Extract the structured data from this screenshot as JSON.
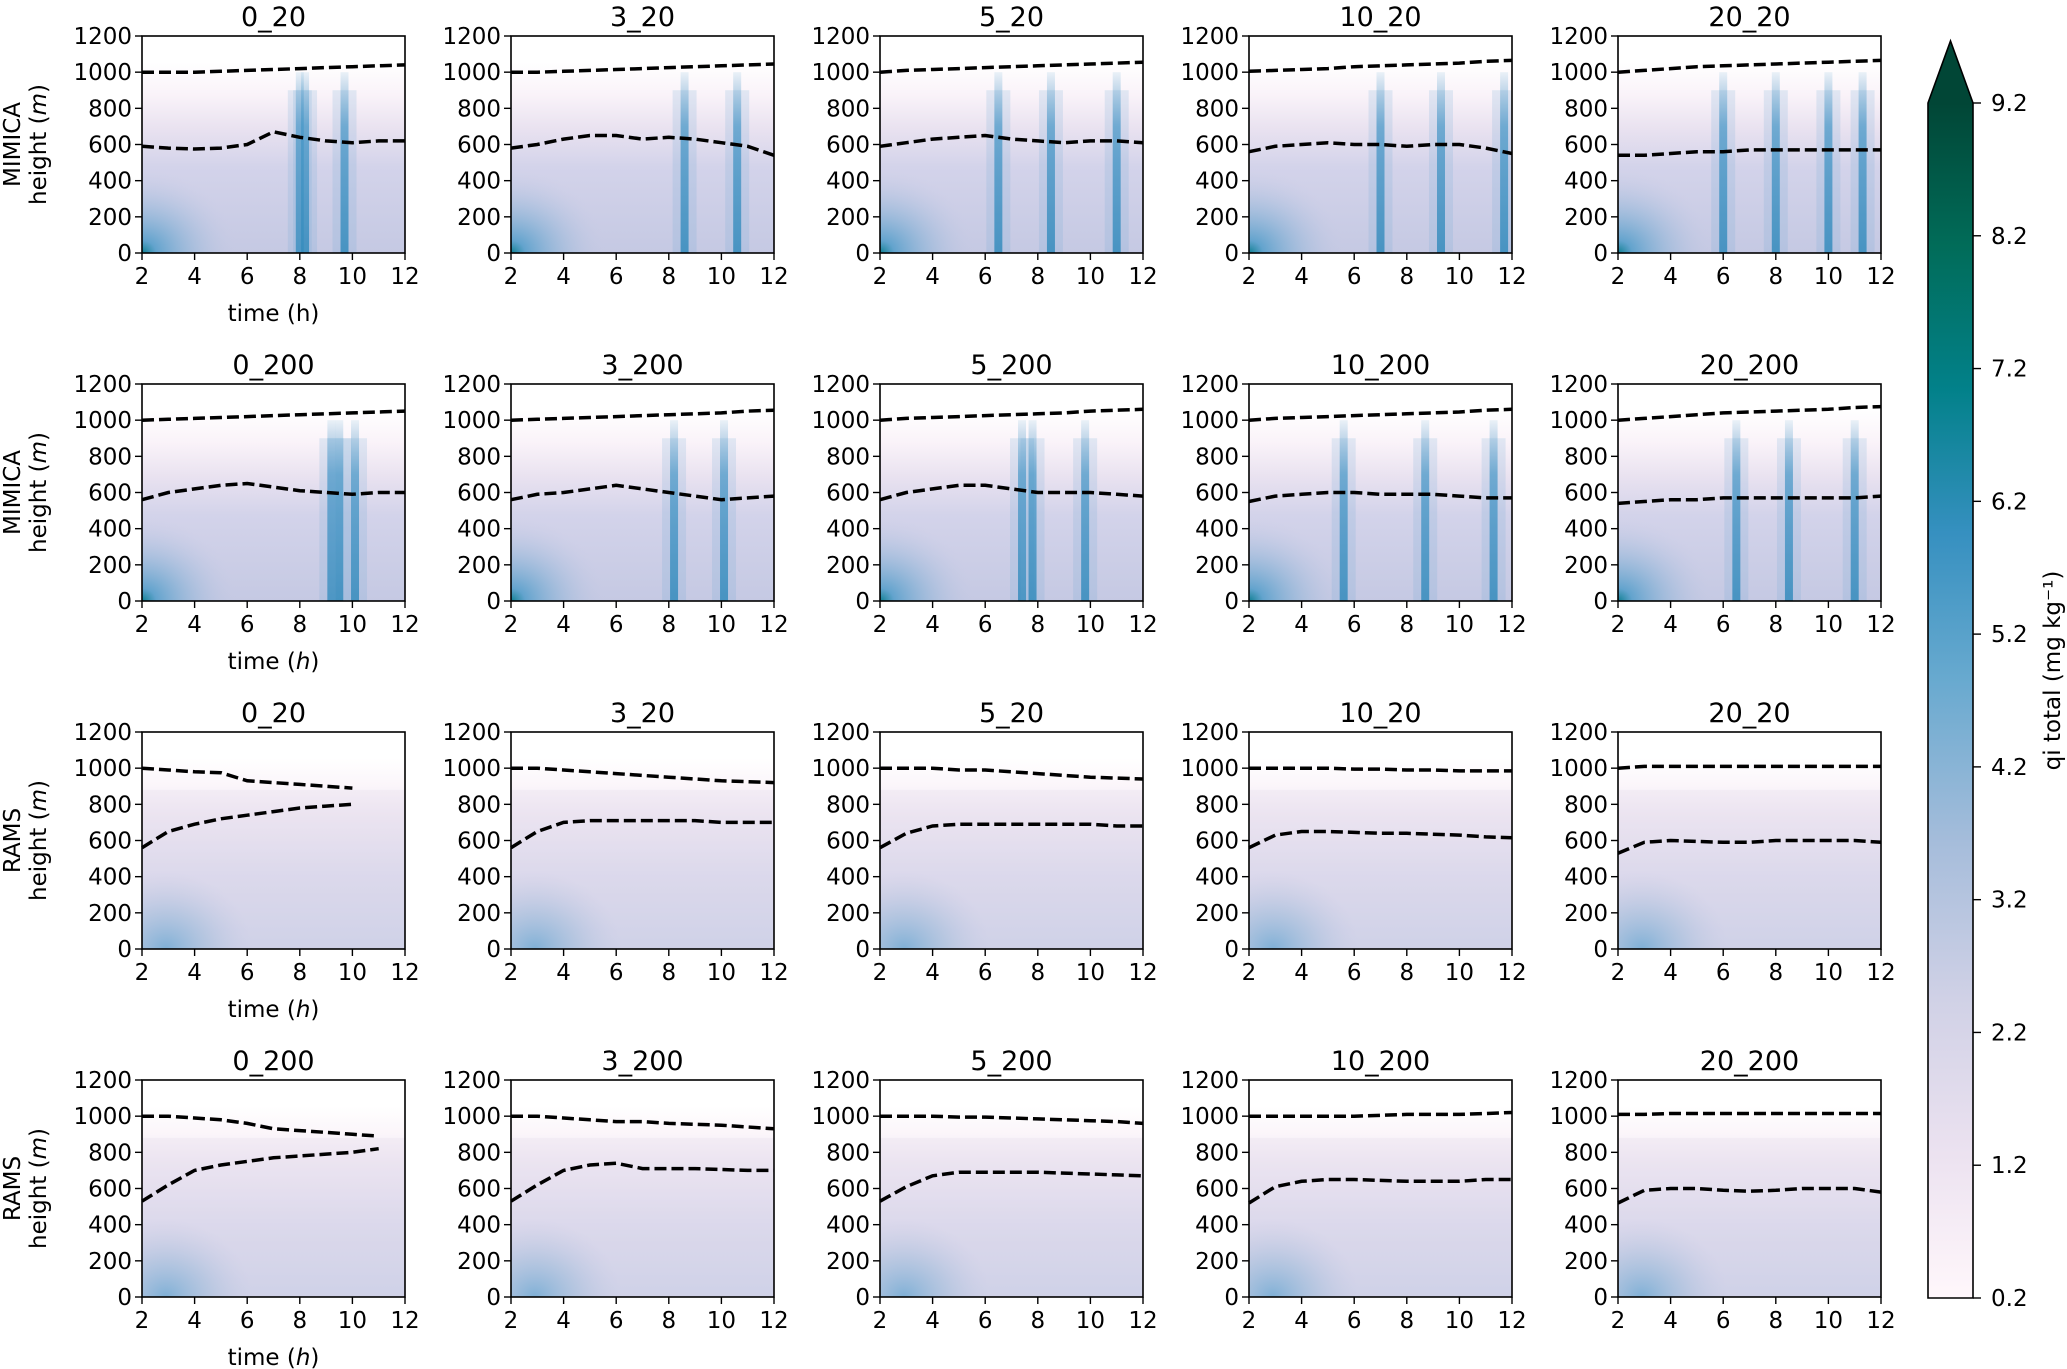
{
  "chart_data": {
    "type": "heatmap",
    "x_ticks": [
      "2",
      "4",
      "6",
      "8",
      "10",
      "12"
    ],
    "xlim": [
      2,
      12
    ],
    "y_ticks": [
      "0",
      "200",
      "400",
      "600",
      "800",
      "1000",
      "1200"
    ],
    "ylim": [
      0,
      1200
    ],
    "xlabel": "time (h)",
    "xlabel_main": "time (",
    "xlabel_var": "h",
    "xlabel_end": ")",
    "ylabel_main": "height (",
    "ylabel_var": "m",
    "ylabel_end": ")",
    "line_times": [
      2,
      3,
      4,
      5,
      6,
      7,
      8,
      9,
      10,
      11,
      12
    ],
    "colorbar": {
      "label": "qi total (mg kg⁻¹)",
      "ticks": [
        "0.2",
        "1.2",
        "2.2",
        "3.2",
        "4.2",
        "5.2",
        "6.2",
        "7.2",
        "8.2",
        "9.2"
      ],
      "range": [
        0.2,
        9.2
      ],
      "extend": "max",
      "colors": [
        "#fff7fb",
        "#ece2f0",
        "#c8cbe4",
        "#a6bddb",
        "#67a9cf",
        "#3690c0",
        "#02818a",
        "#016c59",
        "#014636"
      ]
    },
    "rows": [
      {
        "model": "MIMICA",
        "panels": [
          {
            "title": "0_20",
            "top": [
              1000,
              1000,
              1000,
              1005,
              1010,
              1015,
              1020,
              1025,
              1030,
              1035,
              1040
            ],
            "base": [
              590,
              580,
              575,
              580,
              600,
              670,
              640,
              620,
              610,
              620,
              620
            ],
            "streaks": [
              8.0,
              8.2,
              9.7
            ]
          },
          {
            "title": "3_20",
            "top": [
              1000,
              1000,
              1005,
              1010,
              1015,
              1020,
              1025,
              1030,
              1035,
              1040,
              1045
            ],
            "base": [
              580,
              600,
              630,
              650,
              650,
              630,
              640,
              630,
              610,
              590,
              540
            ],
            "streaks": [
              10.6,
              8.6
            ]
          },
          {
            "title": "5_20",
            "top": [
              1000,
              1010,
              1015,
              1020,
              1025,
              1030,
              1035,
              1040,
              1045,
              1050,
              1055
            ],
            "base": [
              590,
              610,
              630,
              640,
              650,
              630,
              620,
              610,
              620,
              620,
              610
            ],
            "streaks": [
              8.5,
              11.0,
              6.5
            ]
          },
          {
            "title": "10_20",
            "top": [
              1005,
              1010,
              1015,
              1020,
              1030,
              1035,
              1040,
              1045,
              1050,
              1060,
              1065
            ],
            "base": [
              560,
              590,
              600,
              610,
              600,
              600,
              590,
              600,
              600,
              580,
              550
            ],
            "streaks": [
              9.3,
              11.7,
              7.0
            ]
          },
          {
            "title": "20_20",
            "top": [
              1000,
              1010,
              1020,
              1030,
              1035,
              1040,
              1045,
              1050,
              1055,
              1060,
              1065
            ],
            "base": [
              540,
              540,
              550,
              560,
              560,
              570,
              570,
              570,
              570,
              570,
              570
            ],
            "streaks": [
              6.0,
              8.0,
              10.0,
              11.3
            ]
          }
        ]
      },
      {
        "model": "MIMICA",
        "panels": [
          {
            "title": "0_200",
            "top": [
              1000,
              1005,
              1010,
              1015,
              1020,
              1025,
              1030,
              1035,
              1040,
              1045,
              1050
            ],
            "base": [
              560,
              600,
              620,
              640,
              650,
              630,
              610,
              600,
              590,
              600,
              600
            ],
            "streaks": [
              9.2,
              9.5,
              10.1
            ]
          },
          {
            "title": "3_200",
            "top": [
              1000,
              1005,
              1010,
              1015,
              1020,
              1025,
              1030,
              1035,
              1040,
              1050,
              1055
            ],
            "base": [
              560,
              590,
              600,
              620,
              640,
              620,
              600,
              580,
              560,
              570,
              580
            ],
            "streaks": [
              10.1,
              8.2
            ]
          },
          {
            "title": "5_200",
            "top": [
              1000,
              1010,
              1015,
              1020,
              1025,
              1030,
              1035,
              1040,
              1050,
              1055,
              1060
            ],
            "base": [
              560,
              600,
              620,
              640,
              640,
              620,
              600,
              600,
              600,
              590,
              580
            ],
            "streaks": [
              7.4,
              7.8,
              9.8
            ]
          },
          {
            "title": "10_200",
            "top": [
              1000,
              1010,
              1015,
              1020,
              1025,
              1030,
              1035,
              1040,
              1045,
              1055,
              1060
            ],
            "base": [
              550,
              580,
              590,
              600,
              600,
              590,
              590,
              590,
              580,
              570,
              570
            ],
            "streaks": [
              5.6,
              8.7,
              11.3
            ]
          },
          {
            "title": "20_200",
            "top": [
              1000,
              1010,
              1020,
              1030,
              1040,
              1045,
              1050,
              1055,
              1060,
              1070,
              1075
            ],
            "base": [
              540,
              550,
              560,
              560,
              570,
              570,
              570,
              570,
              570,
              570,
              580
            ],
            "streaks": [
              11.0,
              8.5,
              6.5
            ]
          }
        ]
      },
      {
        "model": "RAMS",
        "panels": [
          {
            "title": "0_20",
            "top": [
              1000,
              990,
              980,
              975,
              930,
              920,
              910,
              900,
              890,
              null,
              null
            ],
            "base": [
              560,
              650,
              690,
              720,
              740,
              760,
              780,
              790,
              800,
              null,
              null
            ],
            "streaks": []
          },
          {
            "title": "3_20",
            "top": [
              1000,
              1000,
              990,
              980,
              970,
              960,
              950,
              940,
              930,
              925,
              920
            ],
            "base": [
              560,
              650,
              700,
              710,
              710,
              710,
              710,
              710,
              700,
              700,
              700
            ],
            "streaks": []
          },
          {
            "title": "5_20",
            "top": [
              1000,
              1000,
              1000,
              990,
              990,
              980,
              970,
              960,
              950,
              945,
              940
            ],
            "base": [
              560,
              640,
              680,
              690,
              690,
              690,
              690,
              690,
              690,
              680,
              680
            ],
            "streaks": []
          },
          {
            "title": "10_20",
            "top": [
              1000,
              1000,
              1000,
              1000,
              995,
              995,
              990,
              990,
              985,
              985,
              985
            ],
            "base": [
              560,
              630,
              650,
              650,
              645,
              640,
              640,
              635,
              630,
              620,
              615
            ],
            "streaks": []
          },
          {
            "title": "20_20",
            "top": [
              1000,
              1010,
              1010,
              1010,
              1010,
              1010,
              1010,
              1010,
              1010,
              1010,
              1010
            ],
            "base": [
              530,
              590,
              600,
              595,
              590,
              590,
              600,
              600,
              600,
              600,
              590
            ],
            "streaks": []
          }
        ]
      },
      {
        "model": "RAMS",
        "panels": [
          {
            "title": "0_200",
            "top": [
              1000,
              1000,
              990,
              980,
              960,
              930,
              920,
              910,
              900,
              890,
              null
            ],
            "base": [
              530,
              620,
              700,
              730,
              750,
              770,
              780,
              790,
              800,
              820,
              null
            ],
            "streaks": []
          },
          {
            "title": "3_200",
            "top": [
              1000,
              1000,
              990,
              980,
              970,
              970,
              960,
              955,
              950,
              940,
              930
            ],
            "base": [
              530,
              620,
              700,
              730,
              740,
              710,
              710,
              710,
              705,
              700,
              700
            ],
            "streaks": []
          },
          {
            "title": "5_200",
            "top": [
              1000,
              1000,
              1000,
              995,
              995,
              990,
              985,
              980,
              975,
              970,
              960
            ],
            "base": [
              530,
              610,
              670,
              690,
              690,
              690,
              690,
              685,
              680,
              675,
              670
            ],
            "streaks": []
          },
          {
            "title": "10_200",
            "top": [
              1000,
              1000,
              1000,
              1000,
              1000,
              1005,
              1010,
              1010,
              1010,
              1015,
              1020
            ],
            "base": [
              520,
              610,
              640,
              650,
              650,
              645,
              640,
              640,
              640,
              650,
              650
            ],
            "streaks": []
          },
          {
            "title": "20_200",
            "top": [
              1010,
              1010,
              1015,
              1015,
              1015,
              1015,
              1015,
              1015,
              1015,
              1015,
              1015
            ],
            "base": [
              520,
              590,
              600,
              600,
              590,
              585,
              590,
              600,
              600,
              600,
              580
            ],
            "streaks": []
          }
        ]
      }
    ]
  }
}
